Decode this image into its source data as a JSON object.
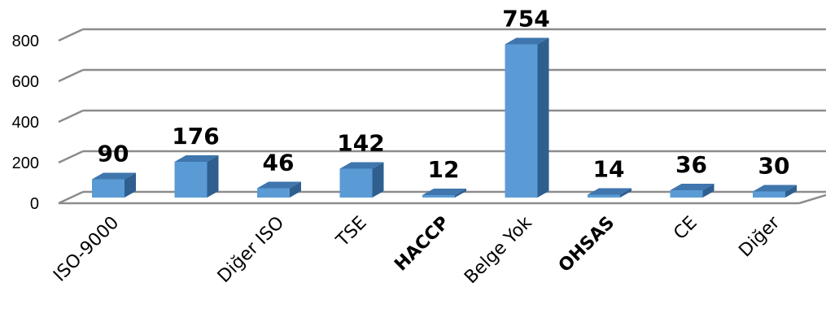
{
  "chart_data": {
    "type": "bar",
    "categories": [
      "ISO-9000",
      "",
      "Diğer ISO",
      "TSE",
      "HACCP",
      "Belge Yok",
      "OHSAS",
      "CE",
      "Diğer"
    ],
    "values": [
      90,
      176,
      46,
      142,
      12,
      754,
      14,
      36,
      30
    ],
    "data_labels": [
      "90",
      "176",
      "46",
      "142",
      "12",
      "754",
      "14",
      "36",
      "30"
    ],
    "bold_categories": [
      "HACCP",
      "OHSAS"
    ],
    "yticks": [
      "0",
      "200",
      "400",
      "600",
      "800"
    ],
    "ylim": [
      0,
      800
    ],
    "grid": true,
    "legend": "none",
    "style": "3d-column",
    "colors": {
      "bar_front": "#5b9bd5",
      "bar_side": "#2e5f8f",
      "bar_top": "#3f76ad",
      "grid": "#8c8c8c",
      "text": "#000000"
    }
  }
}
